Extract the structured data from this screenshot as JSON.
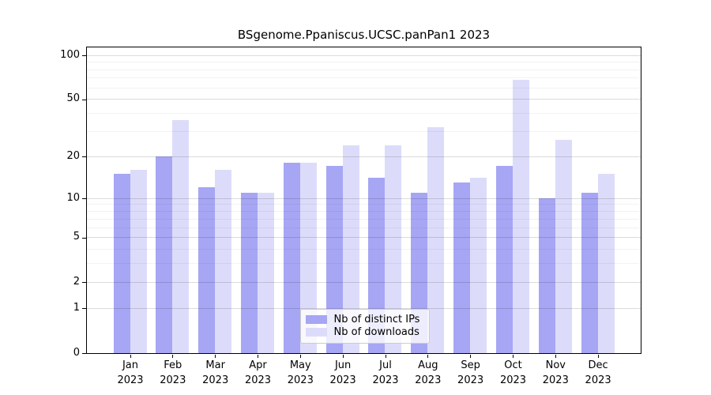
{
  "chart_data": {
    "type": "bar",
    "title": "BSgenome.Ppaniscus.UCSC.panPan1 2023",
    "categories": [
      "Jan",
      "Feb",
      "Mar",
      "Apr",
      "May",
      "Jun",
      "Jul",
      "Aug",
      "Sep",
      "Oct",
      "Nov",
      "Dec"
    ],
    "year_label": "2023",
    "series": [
      {
        "name": "Nb of distinct IPs",
        "color": "#a6a6f4",
        "values": [
          15,
          20,
          12,
          11,
          18,
          17,
          14,
          11,
          13,
          17,
          10,
          11
        ]
      },
      {
        "name": "Nb of downloads",
        "color": "#dcdcfa",
        "values": [
          16,
          36,
          16,
          11,
          18,
          24,
          24,
          32,
          14,
          68,
          26,
          15
        ]
      }
    ],
    "y_axis": {
      "scale": "log1p",
      "tick_values": [
        0,
        1,
        2,
        5,
        10,
        20,
        50,
        100
      ],
      "minor_gridline_values": [
        3,
        4,
        6,
        7,
        8,
        9,
        30,
        40,
        60,
        70,
        80,
        90
      ],
      "range": [
        0,
        113
      ]
    },
    "legend": {
      "position": "inside-bottom-center"
    },
    "grid": "on"
  }
}
